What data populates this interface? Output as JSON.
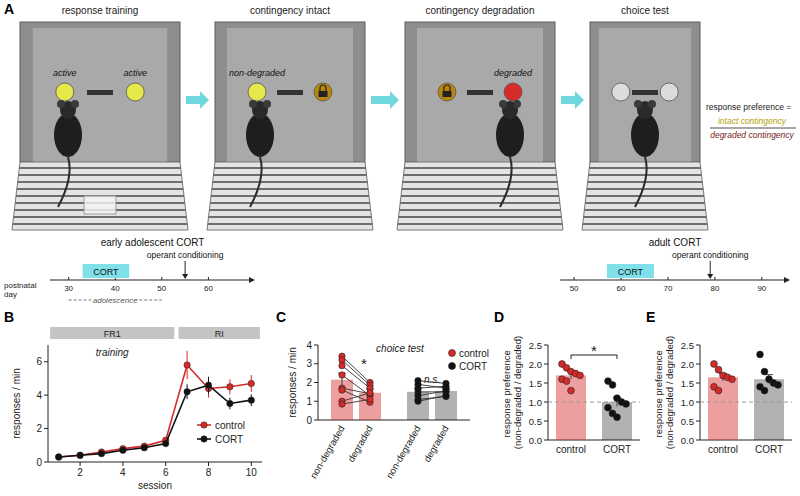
{
  "diagram": {
    "title": "A",
    "stages": [
      {
        "label": "response training",
        "lever_labels": [
          {
            "side": "left",
            "text": "active"
          },
          {
            "side": "right",
            "text": "active"
          }
        ]
      },
      {
        "label": "contingency intact",
        "lever_labels": [
          {
            "side": "left",
            "text": "non-degraded"
          }
        ]
      },
      {
        "label": "contingency degradation",
        "lever_labels": [
          {
            "side": "right",
            "text": "degraded"
          }
        ]
      },
      {
        "label": "choice test",
        "lever_labels": []
      }
    ],
    "formula": {
      "lhs": "response preference =",
      "numerator": "intact contingency",
      "denominator": "degraded contingency"
    },
    "timelines": [
      {
        "title": "early adolescent CORT",
        "axis_label": "postnatal day",
        "xlim": [
          26,
          70
        ],
        "xticks": [
          30,
          40,
          50,
          60
        ],
        "cort": [
          33,
          43
        ],
        "cort_label": "CORT",
        "adolescence": [
          30,
          50
        ],
        "adolescence_label": "adolescence",
        "event": 55,
        "event_label": "operant conditioning"
      },
      {
        "title": "adult CORT",
        "xlim": [
          47,
          96
        ],
        "xticks": [
          50,
          60,
          70,
          80,
          90
        ],
        "cort": [
          57,
          67
        ],
        "cort_label": "CORT",
        "event": 79,
        "event_label": "operant conditioning"
      }
    ]
  },
  "chart_data": [
    {
      "type": "line",
      "title": "B",
      "x_label": "session",
      "y_label": "responses / min",
      "x": [
        1,
        2,
        3,
        4,
        5,
        6,
        7,
        8,
        9,
        10
      ],
      "xlim": [
        0.5,
        10.5
      ],
      "xticks": [
        2,
        4,
        6,
        8,
        10
      ],
      "ylim": [
        0,
        7
      ],
      "yticks": [
        0,
        2,
        4,
        6
      ],
      "grid": false,
      "legend": "right",
      "phases": [
        {
          "label": "FR1",
          "start": 0.6,
          "end": 6.4
        },
        {
          "label": "RI",
          "start": 6.6,
          "end": 10.4
        }
      ],
      "annotations": [
        {
          "text": "training"
        }
      ],
      "series": [
        {
          "name": "control",
          "color": "#d62b2b",
          "marker": "circle",
          "values": [
            0.3,
            0.4,
            0.6,
            0.8,
            0.95,
            1.3,
            5.8,
            4.4,
            4.5,
            4.7
          ],
          "errors": [
            0.03,
            0.04,
            0.06,
            0.08,
            0.1,
            0.15,
            0.85,
            0.55,
            0.45,
            0.5
          ]
        },
        {
          "name": "CORT",
          "color": "#111111",
          "marker": "circle",
          "values": [
            0.3,
            0.4,
            0.5,
            0.7,
            0.85,
            1.1,
            4.2,
            4.6,
            3.5,
            3.7
          ],
          "errors": [
            0.03,
            0.04,
            0.05,
            0.07,
            0.09,
            0.12,
            0.45,
            0.5,
            0.35,
            0.35
          ]
        }
      ]
    },
    {
      "type": "bar",
      "title": "C",
      "y_label": "responses / min",
      "categories": [
        "non-degraded",
        "degraded"
      ],
      "ylim": [
        0,
        4
      ],
      "yticks": [
        0,
        1,
        2,
        3,
        4
      ],
      "grid": false,
      "legend": "top right",
      "annotations": [
        {
          "text": "choice test"
        },
        {
          "text": "*",
          "series": 0
        },
        {
          "text": "n.s.",
          "series": 1
        }
      ],
      "series": [
        {
          "name": "control",
          "color": "#d62b2b",
          "values": [
            2.15,
            1.45
          ],
          "errors": [
            0.35,
            0.2
          ],
          "points": [
            [
              3.4,
              2.0
            ],
            [
              3.2,
              1.85
            ],
            [
              2.9,
              1.7
            ],
            [
              2.4,
              1.3
            ],
            [
              1.7,
              1.4
            ],
            [
              1.6,
              0.95
            ],
            [
              1.0,
              1.45
            ],
            [
              0.85,
              1.1
            ]
          ]
        },
        {
          "name": "CORT",
          "color": "#111111",
          "values": [
            1.5,
            1.55
          ],
          "errors": [
            0.15,
            0.1
          ],
          "points": [
            [
              2.1,
              1.95
            ],
            [
              1.9,
              1.7
            ],
            [
              1.7,
              1.8
            ],
            [
              1.5,
              1.5
            ],
            [
              1.3,
              1.55
            ],
            [
              1.1,
              1.25
            ],
            [
              1.0,
              1.3
            ]
          ]
        }
      ]
    },
    {
      "type": "bar",
      "title": "D",
      "y_label": "response preference (non-degraded / degraded)",
      "categories": [
        "control",
        "CORT"
      ],
      "values": [
        1.7,
        1.0
      ],
      "errors": [
        0.1,
        0.12
      ],
      "colors": [
        "#d62b2b",
        "#111111"
      ],
      "points": [
        [
          2.0,
          1.9,
          1.8,
          1.75,
          1.7,
          1.6,
          1.55,
          1.3
        ],
        [
          1.55,
          1.45,
          1.1,
          1.0,
          0.95,
          0.85,
          0.7,
          0.6
        ]
      ],
      "ylim": [
        0,
        2.5
      ],
      "yticks": [
        {
          "value": 0,
          "label": "0.0"
        },
        0.5,
        {
          "value": 1,
          "label": "1.0"
        },
        1.5,
        {
          "value": 2,
          "label": "2.0"
        },
        2.5
      ],
      "grid": false,
      "reference": 1,
      "annotations": [
        {
          "text": "*",
          "between": [
            0,
            1
          ]
        }
      ]
    },
    {
      "type": "bar",
      "title": "E",
      "y_label": "response preference (non-degraded / degraded)",
      "categories": [
        "control",
        "CORT"
      ],
      "values": [
        1.65,
        1.6
      ],
      "errors": [
        0.1,
        0.12
      ],
      "colors": [
        "#d62b2b",
        "#111111"
      ],
      "points": [
        [
          2.0,
          1.85,
          1.7,
          1.65,
          1.6,
          1.4,
          1.3
        ],
        [
          2.25,
          1.8,
          1.6,
          1.5,
          1.45,
          1.4,
          1.3
        ]
      ],
      "ylim": [
        0,
        2.5
      ],
      "yticks": [
        {
          "value": 0,
          "label": "0.0"
        },
        0.5,
        {
          "value": 1,
          "label": "1.0"
        },
        1.5,
        {
          "value": 2,
          "label": "2.0"
        },
        2.5
      ],
      "grid": false,
      "reference": 1
    }
  ]
}
